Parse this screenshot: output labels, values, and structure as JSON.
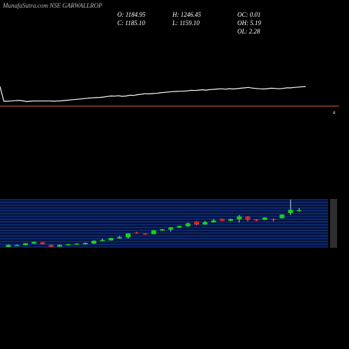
{
  "header": {
    "title": "MunafaSutra.com NSE GARWALLROP",
    "open": "O: 1184.95",
    "close": "C: 1185.10",
    "high": "H: 1246.45",
    "low": "L: 1159.10",
    "oc": "OC: 0.01",
    "oh": "OH: 5.19",
    "ol": "OL: 2.28"
  },
  "colors": {
    "background": "#000000",
    "text": "#ffffff",
    "line": "#ffffff",
    "divider": "#e8632a",
    "band_dark": "#03113a",
    "band_line": "#1f4fbf",
    "bull": "#18d018",
    "bear": "#e02020",
    "wick": "#ffffff"
  },
  "chart_data": [
    {
      "type": "line",
      "title": "",
      "xlabel": "",
      "ylabel": "",
      "x": [
        0,
        1,
        2,
        3,
        4,
        5,
        6,
        7,
        8,
        9,
        10,
        11,
        12,
        13,
        14,
        15,
        16,
        17,
        18,
        19,
        20,
        21,
        22,
        23,
        24,
        25,
        26,
        27,
        28,
        29,
        30,
        31,
        32,
        33,
        34,
        35,
        36,
        37,
        38,
        39,
        40,
        41,
        42,
        43,
        44,
        45,
        46,
        47,
        48,
        49,
        50,
        51,
        52,
        53,
        54,
        55,
        56,
        57,
        58,
        59,
        60,
        61,
        62,
        63,
        64,
        65,
        66,
        67,
        68,
        69,
        70,
        71,
        72,
        73,
        74,
        75,
        76,
        77,
        78,
        79,
        80
      ],
      "values": [
        1300,
        1195,
        1195,
        1196,
        1198,
        1199,
        1197,
        1193,
        1195,
        1196,
        1196,
        1196,
        1196,
        1196,
        1195,
        1196,
        1197,
        1199,
        1201,
        1203,
        1205,
        1207,
        1209,
        1211,
        1213,
        1214,
        1215,
        1217,
        1220,
        1223,
        1222,
        1224,
        1221,
        1223,
        1227,
        1226,
        1230,
        1232,
        1235,
        1234,
        1236,
        1237,
        1240,
        1242,
        1244,
        1246,
        1247,
        1248,
        1248,
        1250,
        1253,
        1252,
        1254,
        1256,
        1254,
        1257,
        1258,
        1260,
        1261,
        1259,
        1262,
        1260,
        1262,
        1264,
        1266,
        1268,
        1265,
        1263,
        1261,
        1260,
        1262,
        1264,
        1263,
        1261,
        1263,
        1266,
        1266,
        1268,
        1270,
        1272,
        1273
      ],
      "ylim": [
        1180,
        1300
      ],
      "grid": false
    },
    {
      "type": "candlestick",
      "title": "",
      "xlabel": "",
      "ylabel": "",
      "annotation": "a",
      "ylim": [
        1000,
        1300
      ],
      "candles": [
        {
          "x": 0,
          "open": 1010,
          "close": 1022,
          "high": 1024,
          "low": 1008
        },
        {
          "x": 1,
          "open": 1018,
          "close": 1021,
          "high": 1025,
          "low": 1016
        },
        {
          "x": 2,
          "open": 1020,
          "close": 1032,
          "high": 1034,
          "low": 1018
        },
        {
          "x": 3,
          "open": 1030,
          "close": 1040,
          "high": 1042,
          "low": 1028
        },
        {
          "x": 4,
          "open": 1038,
          "close": 1026,
          "high": 1040,
          "low": 1024
        },
        {
          "x": 5,
          "open": 1022,
          "close": 1010,
          "high": 1024,
          "low": 1008
        },
        {
          "x": 6,
          "open": 1012,
          "close": 1022,
          "high": 1024,
          "low": 1010
        },
        {
          "x": 7,
          "open": 1020,
          "close": 1026,
          "high": 1028,
          "low": 1018
        },
        {
          "x": 8,
          "open": 1024,
          "close": 1030,
          "high": 1032,
          "low": 1022
        },
        {
          "x": 9,
          "open": 1026,
          "close": 1034,
          "high": 1036,
          "low": 1024
        },
        {
          "x": 10,
          "open": 1030,
          "close": 1048,
          "high": 1050,
          "low": 1028
        },
        {
          "x": 11,
          "open": 1046,
          "close": 1052,
          "high": 1060,
          "low": 1044
        },
        {
          "x": 12,
          "open": 1050,
          "close": 1064,
          "high": 1066,
          "low": 1048
        },
        {
          "x": 13,
          "open": 1062,
          "close": 1070,
          "high": 1078,
          "low": 1060
        },
        {
          "x": 14,
          "open": 1068,
          "close": 1092,
          "high": 1094,
          "low": 1060
        },
        {
          "x": 15,
          "open": 1098,
          "close": 1092,
          "high": 1102,
          "low": 1090
        },
        {
          "x": 16,
          "open": 1092,
          "close": 1086,
          "high": 1094,
          "low": 1084
        },
        {
          "x": 17,
          "open": 1088,
          "close": 1112,
          "high": 1114,
          "low": 1086
        },
        {
          "x": 18,
          "open": 1110,
          "close": 1118,
          "high": 1120,
          "low": 1108
        },
        {
          "x": 19,
          "open": 1116,
          "close": 1130,
          "high": 1132,
          "low": 1104
        },
        {
          "x": 20,
          "open": 1128,
          "close": 1138,
          "high": 1140,
          "low": 1126
        },
        {
          "x": 21,
          "open": 1136,
          "close": 1154,
          "high": 1160,
          "low": 1134
        },
        {
          "x": 22,
          "open": 1166,
          "close": 1148,
          "high": 1168,
          "low": 1144
        },
        {
          "x": 23,
          "open": 1148,
          "close": 1162,
          "high": 1170,
          "low": 1146
        },
        {
          "x": 24,
          "open": 1160,
          "close": 1172,
          "high": 1182,
          "low": 1158
        },
        {
          "x": 25,
          "open": 1182,
          "close": 1170,
          "high": 1184,
          "low": 1168
        },
        {
          "x": 26,
          "open": 1170,
          "close": 1180,
          "high": 1184,
          "low": 1168
        },
        {
          "x": 27,
          "open": 1178,
          "close": 1196,
          "high": 1206,
          "low": 1160
        },
        {
          "x": 28,
          "open": 1196,
          "close": 1176,
          "high": 1198,
          "low": 1168
        },
        {
          "x": 29,
          "open": 1178,
          "close": 1172,
          "high": 1180,
          "low": 1168
        },
        {
          "x": 30,
          "open": 1176,
          "close": 1190,
          "high": 1192,
          "low": 1174
        },
        {
          "x": 31,
          "open": 1182,
          "close": 1178,
          "high": 1184,
          "low": 1168
        },
        {
          "x": 32,
          "open": 1186,
          "close": 1208,
          "high": 1210,
          "low": 1184
        },
        {
          "x": 33,
          "open": 1218,
          "close": 1238,
          "high": 1300,
          "low": 1205
        },
        {
          "x": 34,
          "open": 1232,
          "close": 1236,
          "high": 1248,
          "low": 1226
        }
      ]
    }
  ]
}
